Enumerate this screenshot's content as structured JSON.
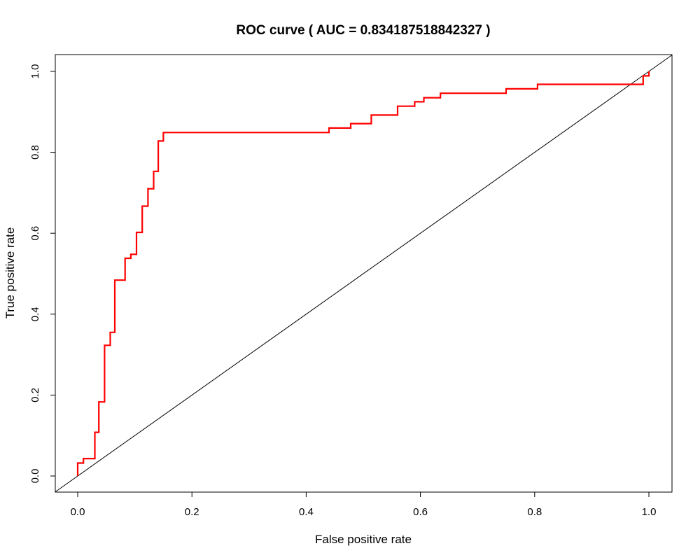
{
  "chart_data": {
    "type": "line",
    "title": "ROC curve ( AUC =  0.834187518842327 )",
    "xlabel": "False positive rate",
    "ylabel": "True positive rate",
    "xlim": [
      0,
      1
    ],
    "ylim": [
      0,
      1
    ],
    "x_ticks": [
      0.0,
      0.2,
      0.4,
      0.6,
      0.8,
      1.0
    ],
    "x_tick_labels": [
      "0.0",
      "0.2",
      "0.4",
      "0.6",
      "0.8",
      "1.0"
    ],
    "y_ticks": [
      0.0,
      0.2,
      0.4,
      0.6,
      0.8,
      1.0
    ],
    "y_tick_labels": [
      "0.0",
      "0.2",
      "0.4",
      "0.6",
      "0.8",
      "1.0"
    ],
    "grid": false,
    "legend": "none",
    "series": [
      {
        "color": "#ff0000",
        "step": true,
        "x": [
          0.0,
          0.0,
          0.01,
          0.01,
          0.03,
          0.03,
          0.037,
          0.037,
          0.047,
          0.047,
          0.057,
          0.057,
          0.065,
          0.065,
          0.083,
          0.083,
          0.093,
          0.093,
          0.103,
          0.103,
          0.113,
          0.113,
          0.123,
          0.123,
          0.133,
          0.133,
          0.141,
          0.141,
          0.15,
          0.15,
          0.44,
          0.44,
          0.478,
          0.478,
          0.514,
          0.514,
          0.56,
          0.56,
          0.59,
          0.59,
          0.606,
          0.606,
          0.635,
          0.635,
          0.75,
          0.75,
          0.805,
          0.805,
          0.99,
          0.99,
          1.0,
          1.0
        ],
        "y": [
          0.0,
          0.032,
          0.032,
          0.043,
          0.043,
          0.108,
          0.108,
          0.183,
          0.183,
          0.323,
          0.323,
          0.355,
          0.355,
          0.484,
          0.484,
          0.538,
          0.538,
          0.548,
          0.548,
          0.602,
          0.602,
          0.667,
          0.667,
          0.71,
          0.71,
          0.753,
          0.753,
          0.828,
          0.828,
          0.849,
          0.849,
          0.86,
          0.86,
          0.871,
          0.871,
          0.892,
          0.892,
          0.914,
          0.914,
          0.925,
          0.925,
          0.935,
          0.935,
          0.946,
          0.946,
          0.957,
          0.957,
          0.968,
          0.968,
          0.989,
          0.989,
          1.0
        ]
      },
      {
        "color": "#000000",
        "x": [
          0,
          1
        ],
        "y": [
          0,
          1
        ]
      }
    ]
  }
}
